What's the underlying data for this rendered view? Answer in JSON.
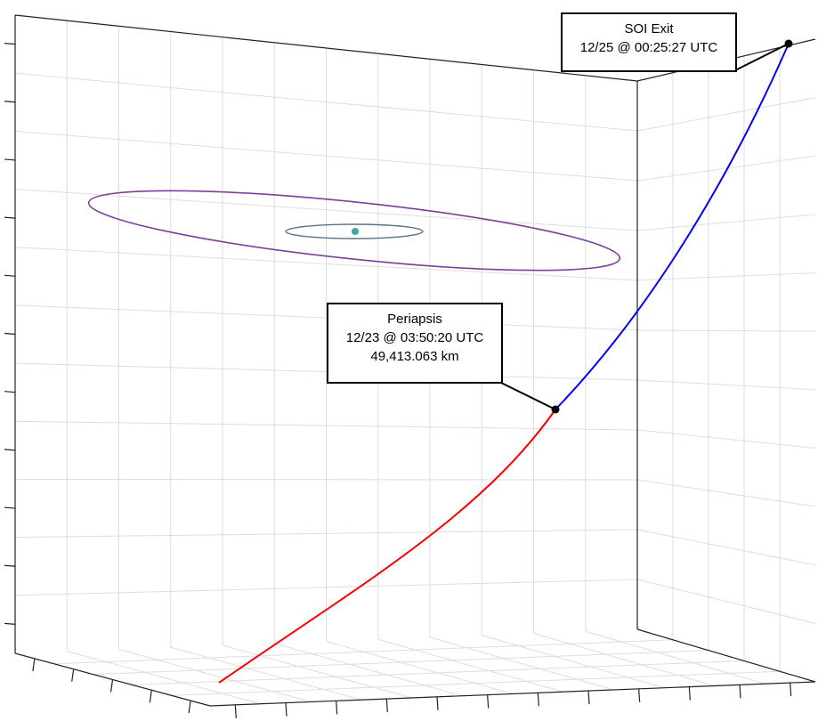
{
  "chart_data": {
    "type": "line",
    "title": "",
    "xlabel": "",
    "ylabel": "",
    "zlabel": "",
    "grid": true,
    "series": [
      {
        "role": "inbound-trajectory",
        "color": "#ff0000"
      },
      {
        "role": "outbound-trajectory",
        "color": "#0000ff"
      },
      {
        "role": "outer-orbit",
        "color": "#7b3f99"
      },
      {
        "role": "inner-orbit",
        "color": "#5b7383"
      }
    ],
    "central_body_color": "#3aa99f",
    "annotations": [
      {
        "id": "soi-exit",
        "lines": [
          "SOI Exit",
          "12/25 @ 00:25:27 UTC"
        ]
      },
      {
        "id": "periapsis",
        "lines": [
          "Periapsis",
          "12/23 @ 03:50:20 UTC",
          "49,413.063 km"
        ]
      }
    ]
  },
  "colors": {
    "grid": "#dddddd",
    "axis": "#222222",
    "marker": "#000000"
  }
}
